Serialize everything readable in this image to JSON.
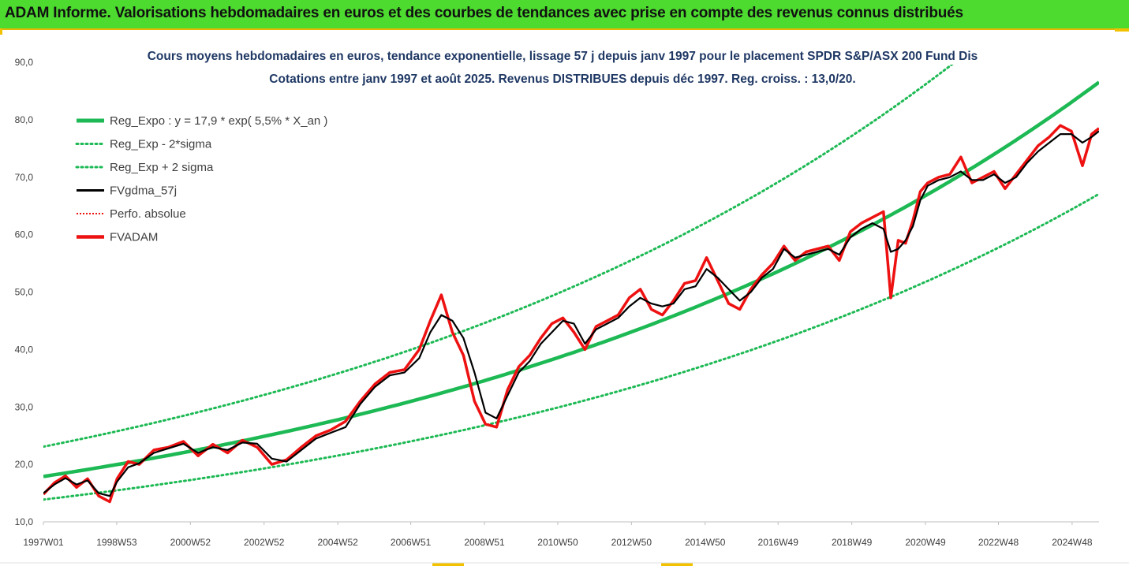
{
  "header": {
    "title": "ADAM Informe. Valorisations hebdomadaires en euros et des courbes de tendances avec prise en compte des revenus connus distribués"
  },
  "colors": {
    "header_bg": "#4ddb2f",
    "accent": "#e3b800",
    "trend": "#1db954",
    "gdma": "#000000",
    "fvadam": "#ee1111",
    "perfo": "#ee1111"
  },
  "chart_data": {
    "type": "line",
    "title_line1": "Cours moyens hebdomadaires en euros, tendance exponentielle, lissage 57 j depuis janv 1997 pour le placement SPDR S&P/ASX 200 Fund Dis",
    "title_line2": "Cotations entre janv 1997 et août 2025. Revenus DISTRIBUES depuis déc 1997. Reg. croiss. : 13,0/20.",
    "xlabel": "",
    "ylabel": "",
    "x_range": [
      1997.0,
      2025.65
    ],
    "ylim": [
      10,
      90
    ],
    "y_ticks": [
      10,
      20,
      30,
      40,
      50,
      60,
      70,
      80,
      90
    ],
    "y_tick_labels": [
      "10,0",
      "20,0",
      "30,0",
      "40,0",
      "50,0",
      "60,0",
      "70,0",
      "80,0",
      "90,0"
    ],
    "x_ticks": [
      1997.0,
      1998.99,
      2000.99,
      2002.99,
      2004.99,
      2006.97,
      2008.97,
      2010.96,
      2012.96,
      2014.96,
      2016.94,
      2018.94,
      2020.94,
      2022.92,
      2024.92
    ],
    "x_tick_labels": [
      "1997W01",
      "1998W53",
      "2000W52",
      "2002W52",
      "2004W52",
      "2006W51",
      "2008W51",
      "2010W50",
      "2012W50",
      "2014W50",
      "2016W49",
      "2018W49",
      "2020W49",
      "2022W48",
      "2024W48"
    ],
    "grid": false,
    "legend_position": "top-left",
    "trend": {
      "a": 17.9,
      "rate": 0.055,
      "sigma_factor": 1.29
    },
    "series": [
      {
        "name": "Reg_Expo : y = 17,9 * exp( 5,5% *  X_an )",
        "kind": "trend",
        "color": "#1db954",
        "style": "solid"
      },
      {
        "name": "Reg_Exp - 2*sigma",
        "kind": "trend_low",
        "color": "#1db954",
        "style": "dotted"
      },
      {
        "name": "Reg_Exp + 2 sigma",
        "kind": "trend_high",
        "color": "#1db954",
        "style": "dotted"
      },
      {
        "name": "FVgdma_57j",
        "kind": "gdma",
        "color": "#000000",
        "style": "solid",
        "x": [
          1997.0,
          1997.3,
          1997.6,
          1997.9,
          1998.2,
          1998.5,
          1998.8,
          1999.0,
          1999.3,
          1999.6,
          2000.0,
          2000.4,
          2000.8,
          2001.2,
          2001.6,
          2002.0,
          2002.4,
          2002.8,
          2003.2,
          2003.6,
          2004.0,
          2004.4,
          2004.8,
          2005.2,
          2005.6,
          2006.0,
          2006.4,
          2006.8,
          2007.2,
          2007.5,
          2007.8,
          2008.1,
          2008.4,
          2008.7,
          2009.0,
          2009.3,
          2009.6,
          2009.9,
          2010.2,
          2010.5,
          2010.8,
          2011.1,
          2011.4,
          2011.7,
          2012.0,
          2012.3,
          2012.6,
          2012.9,
          2013.2,
          2013.5,
          2013.8,
          2014.1,
          2014.4,
          2014.7,
          2015.0,
          2015.3,
          2015.6,
          2015.9,
          2016.2,
          2016.5,
          2016.8,
          2017.1,
          2017.4,
          2017.7,
          2018.0,
          2018.3,
          2018.6,
          2018.9,
          2019.2,
          2019.5,
          2019.8,
          2020.0,
          2020.2,
          2020.4,
          2020.6,
          2020.8,
          2021.0,
          2021.3,
          2021.6,
          2021.9,
          2022.2,
          2022.5,
          2022.8,
          2023.1,
          2023.4,
          2023.7,
          2024.0,
          2024.3,
          2024.6,
          2024.9,
          2025.2,
          2025.45,
          2025.65
        ],
        "y": [
          15.0,
          16.5,
          17.6,
          16.5,
          17.2,
          15.0,
          14.5,
          17.0,
          19.5,
          20.2,
          22.0,
          22.8,
          23.6,
          22.0,
          23.0,
          22.5,
          23.8,
          23.6,
          21.0,
          20.5,
          22.5,
          24.5,
          25.5,
          26.5,
          30.5,
          33.5,
          35.5,
          36.0,
          38.5,
          43.0,
          46.0,
          45.0,
          42.0,
          36.0,
          29.0,
          28.0,
          32.0,
          36.0,
          38.0,
          41.0,
          43.0,
          45.0,
          44.5,
          41.0,
          43.5,
          44.5,
          45.5,
          47.5,
          49.0,
          48.0,
          47.5,
          48.0,
          50.5,
          51.0,
          54.0,
          52.5,
          50.5,
          48.5,
          50.0,
          52.5,
          54.0,
          57.5,
          56.0,
          56.5,
          57.0,
          57.5,
          56.5,
          59.5,
          61.0,
          62.0,
          61.0,
          57.0,
          57.5,
          59.0,
          61.5,
          66.0,
          68.5,
          69.5,
          70.0,
          71.0,
          69.5,
          69.5,
          70.5,
          69.0,
          70.0,
          72.5,
          74.5,
          76.0,
          77.5,
          77.5,
          76.0,
          77.0,
          78.0
        ]
      },
      {
        "name": "Perfo. absolue",
        "kind": "perfo",
        "color": "#ee1111",
        "style": "dotted"
      },
      {
        "name": "FVADAM",
        "kind": "fvadam",
        "color": "#ee1111",
        "style": "solid",
        "x": [
          1997.0,
          1997.3,
          1997.6,
          1997.9,
          1998.2,
          1998.5,
          1998.8,
          1999.0,
          1999.3,
          1999.6,
          2000.0,
          2000.4,
          2000.8,
          2001.2,
          2001.6,
          2002.0,
          2002.4,
          2002.8,
          2003.2,
          2003.6,
          2004.0,
          2004.4,
          2004.8,
          2005.2,
          2005.6,
          2006.0,
          2006.4,
          2006.8,
          2007.2,
          2007.5,
          2007.8,
          2008.1,
          2008.4,
          2008.7,
          2009.0,
          2009.3,
          2009.6,
          2009.9,
          2010.2,
          2010.5,
          2010.8,
          2011.1,
          2011.4,
          2011.7,
          2012.0,
          2012.3,
          2012.6,
          2012.9,
          2013.2,
          2013.5,
          2013.8,
          2014.1,
          2014.4,
          2014.7,
          2015.0,
          2015.3,
          2015.6,
          2015.9,
          2016.2,
          2016.5,
          2016.8,
          2017.1,
          2017.4,
          2017.7,
          2018.0,
          2018.3,
          2018.6,
          2018.9,
          2019.2,
          2019.5,
          2019.8,
          2020.0,
          2020.2,
          2020.4,
          2020.6,
          2020.8,
          2021.0,
          2021.3,
          2021.6,
          2021.9,
          2022.2,
          2022.5,
          2022.8,
          2023.1,
          2023.4,
          2023.7,
          2024.0,
          2024.3,
          2024.6,
          2024.9,
          2025.2,
          2025.45,
          2025.65
        ],
        "y": [
          14.8,
          16.8,
          18.0,
          16.0,
          17.5,
          14.5,
          13.5,
          17.5,
          20.5,
          20.0,
          22.5,
          23.0,
          24.0,
          21.5,
          23.5,
          22.0,
          24.2,
          23.0,
          20.0,
          20.8,
          23.0,
          25.0,
          26.0,
          27.5,
          31.0,
          34.0,
          36.0,
          36.5,
          40.0,
          45.0,
          49.5,
          43.0,
          39.0,
          31.0,
          27.0,
          26.5,
          33.0,
          37.0,
          39.0,
          42.0,
          44.5,
          45.5,
          43.0,
          40.0,
          44.0,
          45.0,
          46.0,
          49.0,
          50.5,
          47.0,
          46.0,
          48.5,
          51.5,
          52.0,
          56.0,
          52.0,
          48.0,
          47.0,
          50.5,
          53.0,
          55.0,
          58.0,
          55.5,
          57.0,
          57.5,
          58.0,
          55.5,
          60.5,
          62.0,
          63.0,
          64.0,
          49.0,
          59.0,
          58.5,
          62.5,
          67.5,
          69.0,
          70.0,
          70.5,
          73.5,
          69.0,
          70.0,
          71.0,
          68.0,
          70.5,
          73.0,
          75.5,
          77.0,
          79.0,
          78.0,
          72.0,
          77.5,
          78.5
        ]
      }
    ]
  }
}
